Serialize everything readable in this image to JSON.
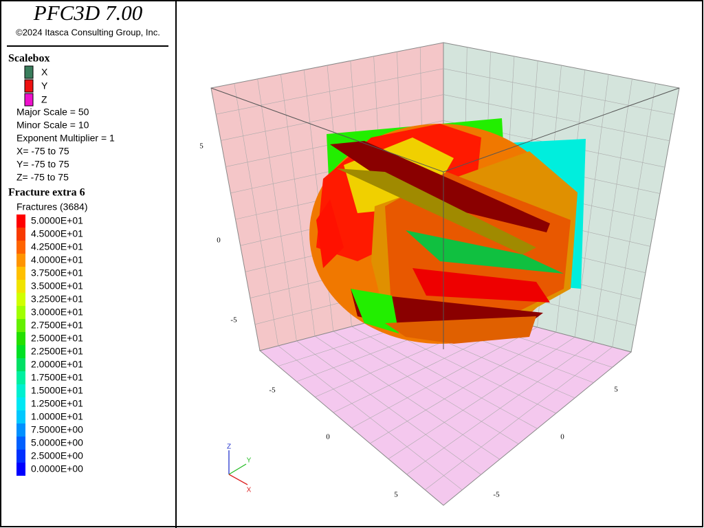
{
  "header": {
    "title": "PFC3D 7.00",
    "copyright": "©2024 Itasca Consulting Group, Inc."
  },
  "scalebox": {
    "title": "Scalebox",
    "axes": [
      {
        "label": "X",
        "color": "#3a7d5c"
      },
      {
        "label": "Y",
        "color": "#ee1111"
      },
      {
        "label": "Z",
        "color": "#ee11cc"
      }
    ],
    "lines": [
      "Major Scale = 50",
      "Minor Scale = 10",
      "Exponent Multiplier = 1",
      "X= -75 to 75",
      "Y= -75 to 75",
      "Z= -75 to 75"
    ]
  },
  "fracture_legend": {
    "title": "Fracture extra 6",
    "subtitle": "Fractures (3684)",
    "entries": [
      {
        "label": "5.0000E+01",
        "color": "#ff0000"
      },
      {
        "label": "4.5000E+01",
        "color": "#f83a00"
      },
      {
        "label": "4.2500E+01",
        "color": "#ff6400"
      },
      {
        "label": "4.0000E+01",
        "color": "#ff9400"
      },
      {
        "label": "3.7500E+01",
        "color": "#ffc000"
      },
      {
        "label": "3.5000E+01",
        "color": "#f0e400"
      },
      {
        "label": "3.2500E+01",
        "color": "#d0ff00"
      },
      {
        "label": "3.0000E+01",
        "color": "#a0ff00"
      },
      {
        "label": "2.7500E+01",
        "color": "#64f000"
      },
      {
        "label": "2.5000E+01",
        "color": "#24e000"
      },
      {
        "label": "2.2500E+01",
        "color": "#00e024"
      },
      {
        "label": "2.0000E+01",
        "color": "#00e064"
      },
      {
        "label": "1.7500E+01",
        "color": "#00f0a0"
      },
      {
        "label": "1.5000E+01",
        "color": "#00f0d0"
      },
      {
        "label": "1.2500E+01",
        "color": "#00e8f4"
      },
      {
        "label": "1.0000E+01",
        "color": "#00c8ff"
      },
      {
        "label": "7.5000E+00",
        "color": "#0090ff"
      },
      {
        "label": "5.0000E+00",
        "color": "#0060ff"
      },
      {
        "label": "2.5000E+00",
        "color": "#0030ff"
      },
      {
        "label": "0.0000E+00",
        "color": "#0000ff"
      }
    ]
  },
  "view": {
    "axis_labels": [
      "5",
      "0",
      "-5",
      "-5",
      "0",
      "5",
      "5",
      "0",
      "-5"
    ],
    "triad": [
      "Z",
      "Y",
      "X"
    ]
  }
}
